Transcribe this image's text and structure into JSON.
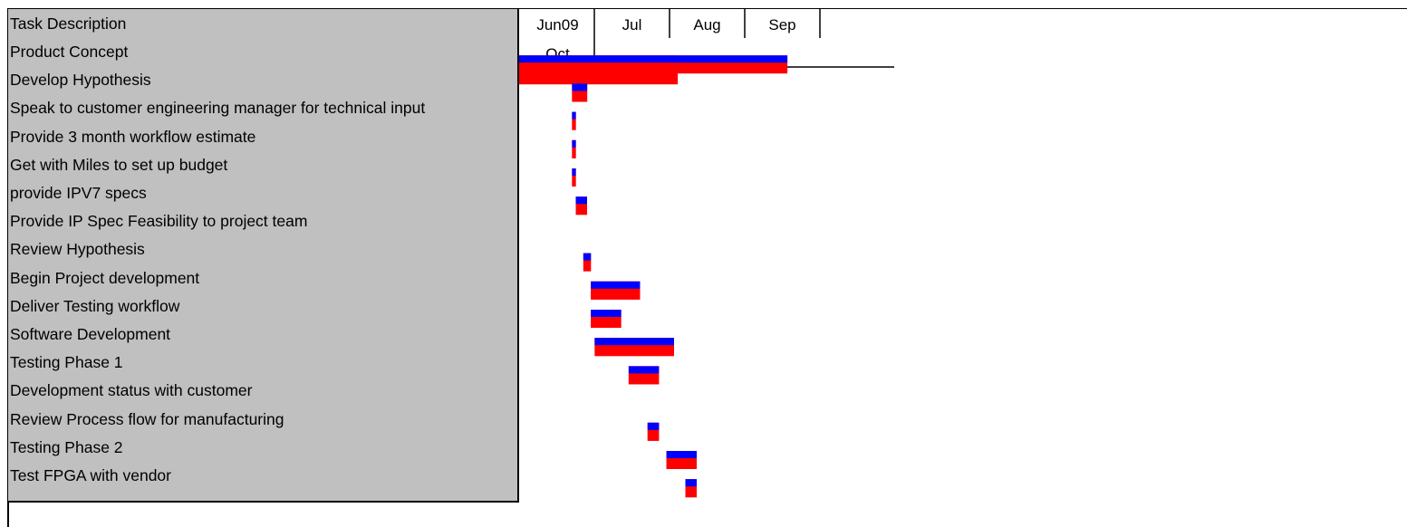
{
  "chart_data": {
    "type": "gantt",
    "task_header": "Task Description",
    "timeline_labels": {
      "row1": [
        "Jun09",
        "Jul",
        "Aug",
        "Sep"
      ],
      "row2": [
        "Oct"
      ]
    },
    "colors": {
      "planned": "#0000ff",
      "actual": "#ff0000",
      "panel": "#c0c0c0"
    },
    "tasks": [
      {
        "name": "Product Concept"
      },
      {
        "name": "Develop Hypothesis",
        "start": "2009-06-01",
        "end": "2009-08-11",
        "actual_end": "2009-07-13"
      },
      {
        "name": "Speak to customer engineering manager for technical input",
        "start": "2009-06-15",
        "end": "2009-06-19"
      },
      {
        "name": "Provide 3 month workflow estimate",
        "start": "2009-06-15",
        "end": "2009-06-16"
      },
      {
        "name": "Get with Miles to set up budget",
        "start": "2009-06-15",
        "end": "2009-06-16"
      },
      {
        "name": "provide IPV7 specs",
        "start": "2009-06-15",
        "end": "2009-06-16"
      },
      {
        "name": "Provide IP Spec Feasibility to project team",
        "start": "2009-06-16",
        "end": "2009-06-19"
      },
      {
        "name": "Review Hypothesis"
      },
      {
        "name": "Begin Project development",
        "start": "2009-06-18",
        "end": "2009-06-20"
      },
      {
        "name": "Deliver Testing workflow",
        "start": "2009-06-20",
        "end": "2009-07-03"
      },
      {
        "name": "Software Development",
        "start": "2009-06-20",
        "end": "2009-06-28"
      },
      {
        "name": "Testing Phase 1",
        "start": "2009-06-21",
        "end": "2009-07-12"
      },
      {
        "name": "Development status with customer",
        "start": "2009-06-30",
        "end": "2009-07-08"
      },
      {
        "name": "Review Process flow for manufacturing"
      },
      {
        "name": "Testing Phase 2",
        "start": "2009-07-05",
        "end": "2009-07-08"
      },
      {
        "name": "Test FPGA with vendor",
        "start": "2009-07-10",
        "end": "2009-07-18"
      },
      {
        "name": "",
        "start": "2009-07-15",
        "end": "2009-07-18"
      }
    ]
  }
}
